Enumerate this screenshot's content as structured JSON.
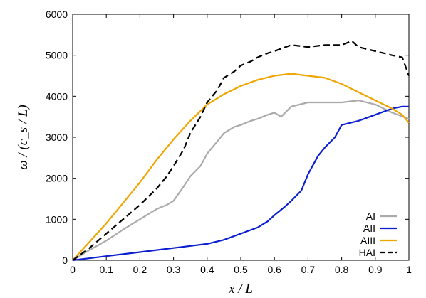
{
  "chart_data": {
    "type": "line",
    "xlabel": "x / L",
    "ylabel": "ω / (c_s / L)",
    "xlim": [
      0,
      1
    ],
    "ylim": [
      0,
      6000
    ],
    "x_ticks": [
      "0",
      "0.1",
      "0.2",
      "0.3",
      "0.4",
      "0.5",
      "0.6",
      "0.7",
      "0.8",
      "0.9",
      "1"
    ],
    "y_ticks": [
      "0",
      "1000",
      "2000",
      "3000",
      "4000",
      "5000",
      "6000"
    ],
    "legend_position": "bottom-right",
    "grid": false,
    "series": [
      {
        "name": "AI",
        "color": "#aaaaaa",
        "dash": "solid",
        "x": [
          0,
          0.05,
          0.1,
          0.15,
          0.2,
          0.25,
          0.28,
          0.3,
          0.33,
          0.35,
          0.38,
          0.4,
          0.43,
          0.45,
          0.48,
          0.5,
          0.53,
          0.55,
          0.58,
          0.6,
          0.62,
          0.65,
          0.7,
          0.75,
          0.8,
          0.85,
          0.9,
          0.95,
          1.0
        ],
        "y": [
          0,
          250,
          480,
          750,
          1000,
          1250,
          1350,
          1450,
          1800,
          2050,
          2300,
          2600,
          2900,
          3100,
          3250,
          3300,
          3400,
          3450,
          3550,
          3600,
          3500,
          3750,
          3850,
          3850,
          3850,
          3900,
          3800,
          3600,
          3450
        ]
      },
      {
        "name": "AII",
        "color": "#0a1fd0",
        "dash": "solid",
        "x": [
          0,
          0.1,
          0.2,
          0.3,
          0.35,
          0.4,
          0.45,
          0.5,
          0.55,
          0.58,
          0.6,
          0.63,
          0.65,
          0.68,
          0.7,
          0.73,
          0.75,
          0.78,
          0.8,
          0.85,
          0.9,
          0.95,
          0.98,
          1.0
        ],
        "y": [
          0,
          100,
          200,
          300,
          350,
          400,
          500,
          650,
          800,
          950,
          1100,
          1300,
          1450,
          1700,
          2100,
          2550,
          2750,
          3000,
          3300,
          3400,
          3550,
          3700,
          3750,
          3750
        ]
      },
      {
        "name": "AIII",
        "color": "#f0a500",
        "dash": "solid",
        "x": [
          0,
          0.05,
          0.1,
          0.15,
          0.2,
          0.25,
          0.3,
          0.35,
          0.4,
          0.45,
          0.5,
          0.55,
          0.6,
          0.65,
          0.7,
          0.75,
          0.8,
          0.85,
          0.9,
          0.95,
          0.98,
          1.0
        ],
        "y": [
          0,
          450,
          900,
          1400,
          1900,
          2450,
          2950,
          3400,
          3800,
          4050,
          4250,
          4400,
          4500,
          4550,
          4500,
          4450,
          4300,
          4100,
          3900,
          3700,
          3550,
          3350
        ]
      },
      {
        "name": "HAI",
        "color": "#000000",
        "dash": "dashed",
        "x": [
          0,
          0.05,
          0.1,
          0.15,
          0.2,
          0.25,
          0.28,
          0.3,
          0.33,
          0.35,
          0.38,
          0.4,
          0.43,
          0.45,
          0.48,
          0.5,
          0.53,
          0.55,
          0.58,
          0.6,
          0.65,
          0.7,
          0.75,
          0.8,
          0.83,
          0.85,
          0.9,
          0.95,
          0.98,
          1.0
        ],
        "y": [
          0,
          300,
          650,
          1000,
          1350,
          1750,
          2050,
          2300,
          2700,
          3100,
          3500,
          3850,
          4150,
          4450,
          4600,
          4750,
          4850,
          4950,
          5050,
          5100,
          5250,
          5200,
          5250,
          5250,
          5350,
          5200,
          5100,
          5000,
          4950,
          4500
        ]
      }
    ]
  }
}
